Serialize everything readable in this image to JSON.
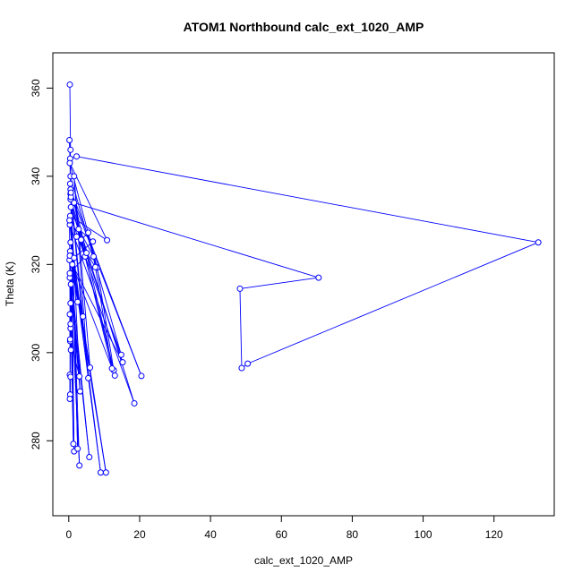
{
  "chart_data": {
    "type": "line",
    "title": "ATOM1 Northbound calc_ext_1020_AMP",
    "xlabel": "calc_ext_1020_AMP",
    "ylabel": "Theta (K)",
    "xlim": [
      -4.5,
      137
    ],
    "ylim": [
      263,
      368
    ],
    "x_ticks": [
      0,
      20,
      40,
      60,
      80,
      100,
      120
    ],
    "y_ticks": [
      280,
      300,
      320,
      340,
      360
    ],
    "grid": false,
    "marker": "open-circle",
    "line_color": "#0000ff",
    "series": [
      {
        "points": [
          [
            0.3,
            360.8
          ],
          [
            0.5,
            346
          ],
          [
            0.4,
            344
          ],
          [
            2.2,
            344.5
          ],
          [
            132.5,
            325
          ],
          [
            50.5,
            297.5
          ],
          [
            48.8,
            296.5
          ],
          [
            48.3,
            314.5
          ],
          [
            70.5,
            317
          ],
          [
            1.5,
            334
          ],
          [
            20.5,
            294.7
          ],
          [
            0.5,
            337
          ],
          [
            0.2,
            348.2
          ],
          [
            0.5,
            340
          ],
          [
            14.8,
            299.5
          ],
          [
            0.4,
            331
          ],
          [
            10.8,
            325.5
          ],
          [
            0.3,
            343
          ],
          [
            8,
            319.3
          ],
          [
            12.7,
            296
          ],
          [
            0.5,
            334.8
          ],
          [
            18.5,
            288.5
          ],
          [
            0.3,
            329
          ],
          [
            9,
            272.8
          ],
          [
            0.5,
            325
          ],
          [
            10.5,
            272.8
          ],
          [
            0.4,
            323
          ],
          [
            6,
            296.6
          ],
          [
            1.5,
            340
          ],
          [
            5.5,
            294.2
          ],
          [
            0.5,
            336
          ],
          [
            3.2,
            291.2
          ],
          [
            0.3,
            317
          ],
          [
            5.8,
            276.3
          ],
          [
            0.2,
            321
          ],
          [
            3,
            274.4
          ],
          [
            0.6,
            333
          ],
          [
            15.2,
            297.8
          ],
          [
            1,
            320
          ],
          [
            13,
            294.8
          ],
          [
            0.4,
            338.3
          ],
          [
            4.6,
            321.8
          ],
          [
            0.3,
            318
          ],
          [
            1.3,
            279.3
          ],
          [
            0.4,
            322
          ],
          [
            1.5,
            277.6
          ],
          [
            0.6,
            335.3
          ],
          [
            2.5,
            278.2
          ],
          [
            0.6,
            336.3
          ],
          [
            4,
            308.2
          ],
          [
            0.3,
            322
          ],
          [
            2.5,
            311.5
          ],
          [
            0.2,
            330
          ],
          [
            0.4,
            302.6
          ],
          [
            0.3,
            308.7
          ],
          [
            0.4,
            290.5
          ],
          [
            0.3,
            295
          ],
          [
            0.5,
            294.5
          ],
          [
            0.3,
            289.5
          ],
          [
            0.5,
            305.5
          ],
          [
            0.6,
            300.6
          ],
          [
            0.5,
            311.2
          ],
          [
            0.4,
            303
          ],
          [
            3,
            294.6
          ],
          [
            0.6,
            315.5
          ],
          [
            0.5,
            306.5
          ],
          [
            1.5,
            321.5
          ],
          [
            6.8,
            325.2
          ],
          [
            2.8,
            328
          ],
          [
            7,
            321.8
          ],
          [
            12.2,
            296.4
          ],
          [
            3.5,
            325.6
          ],
          [
            5.5,
            327.2
          ],
          [
            7.5,
            319.4
          ],
          [
            2.2,
            326.3
          ],
          [
            5,
            322.6
          ]
        ]
      }
    ]
  }
}
